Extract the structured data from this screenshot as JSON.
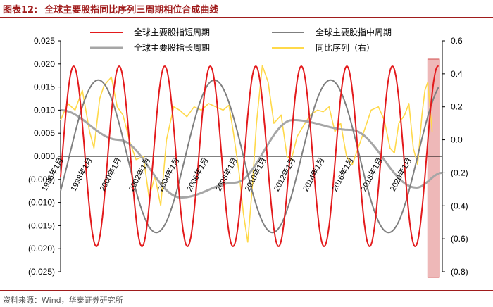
{
  "title": {
    "prefix": "图表12:",
    "text": "全球主要股指同比序列三周期相位合成曲线"
  },
  "source": "资料来源：Wind，华泰证券研究所",
  "colors": {
    "short": "#e31a1c",
    "medium": "#7f7f7f",
    "long": "#a6a6a6",
    "yoy": "#ffd94a",
    "highlight": "#e8a0a0",
    "highlight_edge": "#d24b4b",
    "title": "#a01c1c"
  },
  "chart_data": {
    "type": "line",
    "x_start": 1996.0,
    "x_end": 2022.3,
    "left_axis": {
      "ylim": [
        -0.025,
        0.025
      ],
      "ticks": [
        "0.025",
        "0.020",
        "0.015",
        "0.010",
        "0.005",
        "0.000",
        "(0.005)",
        "(0.010)",
        "(0.015)",
        "(0.020)",
        "(0.025)"
      ]
    },
    "right_axis": {
      "ylim": [
        -0.8,
        0.6
      ],
      "ticks": [
        "0.6",
        "0.4",
        "0.2",
        "0.0",
        "(0.2)",
        "(0.4)",
        "(0.6)",
        "(0.8)"
      ]
    },
    "x_tick_labels": [
      "1996年1月",
      "1998年1月",
      "2000年1月",
      "2002年1月",
      "2004年1月",
      "2006年1月",
      "2008年1月",
      "2010年1月",
      "2012年1月",
      "2014年1月",
      "2016年1月",
      "2018年1月",
      "2020年1月"
    ],
    "highlight": {
      "from": 2021.3,
      "to": 2022.1
    },
    "series": [
      {
        "name": "全球主要股指短周期",
        "axis": "left",
        "peak_years": [
          1996.9,
          2000.1,
          2003.4,
          2006.6,
          2009.8,
          2013.0,
          2016.3,
          2019.5,
          2022.0
        ],
        "amplitude": 0.0195
      },
      {
        "name": "全球主要股指中周期",
        "axis": "left",
        "peak_years": [
          1998.6,
          2006.6,
          2014.6
        ],
        "amplitude": 0.0165
      },
      {
        "name": "全球主要股指长周期",
        "axis": "right",
        "x": [
          1996.0,
          2000.0,
          2004.3,
          2008.0,
          2012.0,
          2016.0,
          2020.5,
          2022.3
        ],
        "y": [
          0.18,
          0.0,
          -0.35,
          -0.26,
          0.12,
          0.06,
          -0.29,
          -0.2
        ]
      },
      {
        "name": "同比序列（右）",
        "axis": "right",
        "x": [
          1996.0,
          1996.5,
          1997.0,
          1997.5,
          1998.0,
          1998.3,
          1998.7,
          1999.0,
          1999.5,
          1999.9,
          2000.3,
          2000.8,
          2001.2,
          2001.7,
          2002.1,
          2002.5,
          2002.9,
          2003.3,
          2003.8,
          2004.2,
          2004.7,
          2005.2,
          2005.7,
          2006.2,
          2006.7,
          2007.2,
          2007.6,
          2007.9,
          2008.3,
          2008.6,
          2008.9,
          2009.2,
          2009.5,
          2009.9,
          2010.3,
          2010.7,
          2011.2,
          2011.6,
          2011.9,
          2012.3,
          2012.7,
          2013.2,
          2013.7,
          2014.1,
          2014.5,
          2014.9,
          2015.3,
          2015.7,
          2016.1,
          2016.5,
          2016.9,
          2017.4,
          2017.9,
          2018.3,
          2018.7,
          2019.0,
          2019.3,
          2019.7,
          2020.0,
          2020.3,
          2020.6,
          2020.9,
          2021.1,
          2021.3,
          2021.6
        ],
        "y": [
          0.12,
          0.22,
          0.18,
          0.3,
          0.05,
          -0.05,
          0.25,
          0.33,
          0.38,
          0.2,
          0.15,
          -0.02,
          -0.12,
          -0.1,
          -0.35,
          -0.22,
          -0.4,
          0.0,
          0.2,
          0.18,
          0.14,
          0.2,
          0.18,
          0.22,
          0.2,
          0.18,
          0.21,
          0.05,
          -0.2,
          -0.45,
          -0.62,
          -0.3,
          0.1,
          0.45,
          0.35,
          0.1,
          0.15,
          -0.1,
          -0.12,
          0.02,
          0.08,
          0.15,
          0.18,
          0.17,
          0.2,
          0.05,
          0.1,
          -0.1,
          -0.15,
          -0.05,
          0.05,
          0.18,
          0.2,
          0.12,
          -0.05,
          -0.08,
          0.1,
          0.15,
          0.22,
          -0.05,
          -0.15,
          0.15,
          0.3,
          0.35,
          0.05
        ]
      }
    ]
  }
}
